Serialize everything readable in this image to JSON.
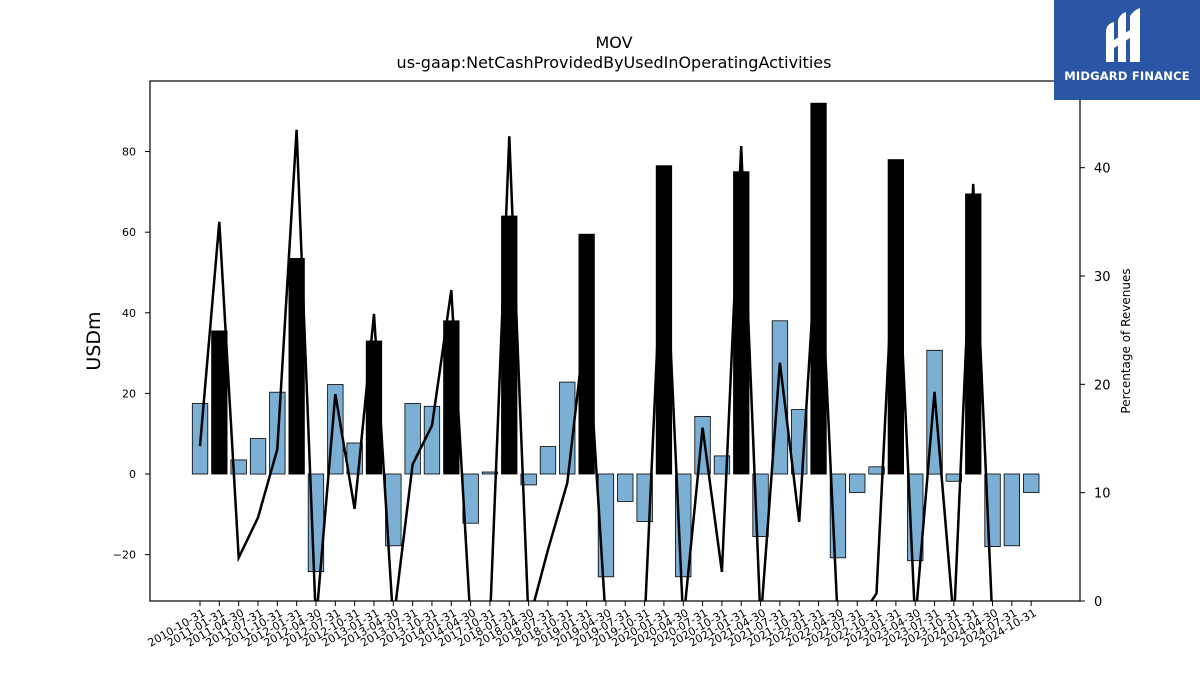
{
  "chart_data": {
    "type": "bar",
    "title": "MOV",
    "subtitle": "us-gaap:NetCashProvidedByUsedInOperatingActivities",
    "ylabel": "USDm",
    "y2label": "Percentage of Revenues",
    "ylim": [
      -31.5,
      97.5
    ],
    "y2lim": [
      0,
      48
    ],
    "yticks": [
      -20,
      0,
      20,
      40,
      60,
      80
    ],
    "y2ticks": [
      0,
      10,
      20,
      30,
      40
    ],
    "categories": [
      "2010-10-31",
      "2011-01-31",
      "2011-04-30",
      "2011-07-31",
      "2011-10-31",
      "2012-01-31",
      "2012-04-30",
      "2012-07-31",
      "2012-10-31",
      "2013-01-31",
      "2013-04-30",
      "2013-07-31",
      "2013-10-31",
      "2014-01-31",
      "2014-04-30",
      "2017-10-31",
      "2018-01-31",
      "2018-04-30",
      "2018-07-31",
      "2018-10-31",
      "2019-01-31",
      "2019-04-30",
      "2019-07-31",
      "2019-10-31",
      "2020-01-31",
      "2020-04-30",
      "2020-07-31",
      "2020-10-31",
      "2021-01-31",
      "2021-04-30",
      "2021-07-31",
      "2021-10-31",
      "2022-01-31",
      "2022-04-30",
      "2022-07-31",
      "2022-10-31",
      "2023-01-31",
      "2023-04-30",
      "2023-07-31",
      "2023-10-31",
      "2024-01-31",
      "2024-04-30",
      "2024-07-31",
      "2024-10-31"
    ],
    "series": [
      {
        "style": "bar",
        "values": [
          17.5,
          35.5,
          3.5,
          8.8,
          20.3,
          53.5,
          -24.2,
          22.2,
          7.7,
          33.0,
          -17.8,
          17.5,
          16.8,
          38.0,
          -12.2,
          0.5,
          64.0,
          -2.7,
          6.8,
          22.8,
          59.5,
          -25.5,
          -6.8,
          -11.8,
          76.5,
          -25.5,
          14.3,
          4.5,
          75.0,
          -15.5,
          38.0,
          16.0,
          92.0,
          -20.8,
          -4.6,
          1.8,
          78.0,
          -21.5,
          30.7,
          -1.8,
          69.5,
          -18.0,
          -17.8,
          -4.6
        ],
        "annual": [
          false,
          true,
          false,
          false,
          false,
          true,
          false,
          false,
          false,
          true,
          false,
          false,
          false,
          true,
          false,
          false,
          true,
          false,
          false,
          false,
          true,
          false,
          false,
          false,
          true,
          false,
          false,
          false,
          true,
          false,
          false,
          false,
          true,
          false,
          false,
          false,
          true,
          false,
          false,
          false,
          true,
          false,
          false,
          false
        ]
      },
      {
        "style": "line",
        "axis": "right",
        "values": [
          14.3,
          35.0,
          4.0,
          7.7,
          14.0,
          43.5,
          -2,
          19.1,
          8.5,
          26.5,
          -2,
          12.6,
          16.2,
          28.7,
          -2,
          -2,
          42.9,
          -2,
          4.7,
          10.9,
          26.5,
          -2,
          -2,
          -2,
          37.0,
          -2,
          16.0,
          2.7,
          42.0,
          -2,
          22.0,
          7.3,
          36.0,
          -2,
          -2,
          0.7,
          36.5,
          -2,
          19.3,
          -2,
          38.5,
          -2,
          -2,
          -2
        ]
      }
    ],
    "colors": {
      "bar_quarter": "#7bafd4",
      "bar_annual": "#000000",
      "line": "#000000",
      "logo_bg": "#2b56a6"
    }
  },
  "logo": {
    "text": "MIDGARD FINANCE"
  }
}
